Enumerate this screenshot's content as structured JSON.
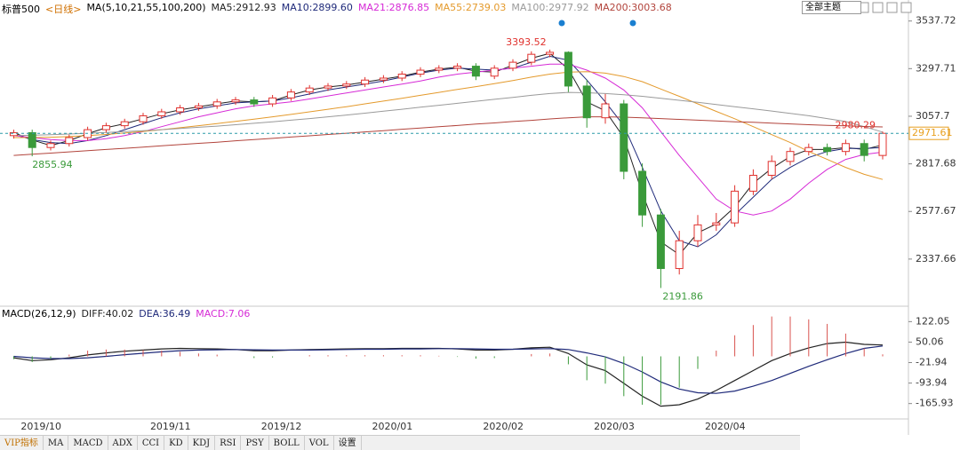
{
  "chart_data": [
    {
      "type": "candlestick",
      "title": "标普500",
      "period": "<日线>",
      "indicator": "MA(5,10,21,55,100,200)",
      "up_color": "#e0312d",
      "down_color": "#3a9a3a",
      "last_color": "#e8a020",
      "categories": [
        null,
        "2019/10",
        null,
        null,
        null,
        null,
        null,
        null,
        "2019/11",
        null,
        null,
        null,
        null,
        null,
        "2019/12",
        null,
        null,
        null,
        null,
        null,
        "2020/01",
        null,
        null,
        null,
        null,
        null,
        "2020/02",
        null,
        null,
        null,
        null,
        null,
        "2020/03",
        null,
        null,
        null,
        null,
        null,
        "2020/04",
        null,
        null,
        null,
        null,
        null,
        null,
        null,
        null,
        null
      ],
      "open": [
        2960,
        2975,
        2900,
        2920,
        2950,
        2990,
        3010,
        3030,
        3060,
        3080,
        3100,
        3110,
        3130,
        3140,
        3120,
        3150,
        3180,
        3200,
        3210,
        3220,
        3240,
        3250,
        3270,
        3290,
        3300,
        3310,
        3260,
        3300,
        3330,
        3370,
        3380,
        3210,
        3050,
        3120,
        2780,
        2560,
        2290,
        2430,
        2510,
        2520,
        2680,
        2760,
        2830,
        2880,
        2900,
        2880,
        2920,
        2860
      ],
      "high": [
        2990,
        2990,
        2935,
        2965,
        3005,
        3025,
        3045,
        3075,
        3095,
        3115,
        3125,
        3145,
        3155,
        3155,
        3165,
        3195,
        3215,
        3225,
        3235,
        3255,
        3265,
        3285,
        3305,
        3315,
        3325,
        3325,
        3315,
        3345,
        3385,
        3393.52,
        3385,
        3240,
        3170,
        3140,
        2820,
        2590,
        2480,
        2560,
        2570,
        2710,
        2790,
        2860,
        2900,
        2920,
        2920,
        2940,
        2940,
        2980.29
      ],
      "low": [
        2945,
        2855.94,
        2885,
        2905,
        2935,
        2975,
        2995,
        3015,
        3045,
        3065,
        3085,
        3095,
        3115,
        3105,
        3105,
        3135,
        3165,
        3185,
        3195,
        3205,
        3225,
        3235,
        3255,
        3275,
        3285,
        3240,
        3245,
        3285,
        3315,
        3355,
        3180,
        3000,
        3020,
        2740,
        2500,
        2191.86,
        2260,
        2400,
        2480,
        2500,
        2660,
        2740,
        2810,
        2860,
        2860,
        2860,
        2830,
        2840
      ],
      "close": [
        2975,
        2900,
        2920,
        2950,
        2990,
        3010,
        3030,
        3060,
        3080,
        3100,
        3110,
        3130,
        3140,
        3120,
        3150,
        3180,
        3200,
        3210,
        3220,
        3240,
        3250,
        3270,
        3290,
        3300,
        3310,
        3260,
        3300,
        3330,
        3370,
        3380,
        3210,
        3050,
        3120,
        2780,
        2560,
        2290,
        2430,
        2510,
        2520,
        2680,
        2760,
        2830,
        2880,
        2900,
        2880,
        2920,
        2860,
        2971.61
      ],
      "series": [
        {
          "name": "MA5:2912.93",
          "color": "#222222",
          "values": [
            2975,
            2938,
            2910,
            2935,
            2970,
            3000,
            3020,
            3045,
            3070,
            3090,
            3105,
            3120,
            3135,
            3130,
            3135,
            3165,
            3190,
            3205,
            3215,
            3230,
            3245,
            3260,
            3280,
            3295,
            3305,
            3285,
            3280,
            3315,
            3350,
            3375,
            3295,
            3130,
            3085,
            2950,
            2670,
            2425,
            2360,
            2470,
            2515,
            2600,
            2720,
            2795,
            2855,
            2890,
            2890,
            2900,
            2890,
            2912.93
          ]
        },
        {
          "name": "MA10:2899.60",
          "color": "#1f2a7a",
          "values": [
            2965,
            2940,
            2925,
            2920,
            2935,
            2960,
            2990,
            3020,
            3050,
            3075,
            3095,
            3110,
            3125,
            3130,
            3135,
            3150,
            3170,
            3190,
            3205,
            3220,
            3235,
            3255,
            3275,
            3290,
            3300,
            3295,
            3290,
            3300,
            3330,
            3360,
            3340,
            3240,
            3130,
            3010,
            2800,
            2580,
            2430,
            2400,
            2460,
            2560,
            2650,
            2740,
            2800,
            2850,
            2880,
            2895,
            2895,
            2899.6
          ]
        },
        {
          "name": "MA21:2876.85",
          "color": "#d62ad6",
          "values": [
            2960,
            2950,
            2940,
            2935,
            2935,
            2945,
            2960,
            2980,
            3005,
            3030,
            3055,
            3075,
            3095,
            3110,
            3120,
            3130,
            3145,
            3160,
            3175,
            3190,
            3205,
            3220,
            3235,
            3255,
            3270,
            3280,
            3290,
            3300,
            3310,
            3320,
            3320,
            3290,
            3250,
            3190,
            3100,
            2980,
            2860,
            2750,
            2640,
            2580,
            2560,
            2580,
            2640,
            2720,
            2790,
            2840,
            2865,
            2876.85
          ]
        },
        {
          "name": "MA55:2739.03",
          "color": "#e49a2c",
          "values": [
            2950,
            2950,
            2952,
            2955,
            2960,
            2966,
            2973,
            2981,
            2990,
            3000,
            3010,
            3021,
            3032,
            3043,
            3055,
            3067,
            3080,
            3093,
            3106,
            3120,
            3134,
            3148,
            3163,
            3178,
            3193,
            3207,
            3222,
            3238,
            3255,
            3270,
            3280,
            3282,
            3275,
            3258,
            3232,
            3195,
            3158,
            3120,
            3082,
            3045,
            3005,
            2965,
            2925,
            2880,
            2840,
            2800,
            2765,
            2739.03
          ]
        },
        {
          "name": "MA100:2977.92",
          "color": "#9a9a9a",
          "values": [
            2960,
            2962,
            2965,
            2968,
            2972,
            2976,
            2980,
            2985,
            2990,
            2996,
            3002,
            3008,
            3015,
            3022,
            3030,
            3038,
            3046,
            3055,
            3064,
            3073,
            3083,
            3093,
            3103,
            3113,
            3123,
            3133,
            3143,
            3153,
            3163,
            3172,
            3178,
            3176,
            3172,
            3166,
            3158,
            3148,
            3138,
            3128,
            3117,
            3106,
            3095,
            3084,
            3072,
            3060,
            3046,
            3031,
            3005,
            2977.92
          ]
        },
        {
          "name": "MA200:3003.68",
          "color": "#b2443c",
          "values": [
            2860,
            2866,
            2872,
            2878,
            2884,
            2890,
            2896,
            2902,
            2909,
            2915,
            2921,
            2927,
            2934,
            2940,
            2946,
            2953,
            2959,
            2966,
            2972,
            2979,
            2985,
            2992,
            2998,
            3005,
            3011,
            3018,
            3024,
            3031,
            3037,
            3044,
            3050,
            3055,
            3055,
            3053,
            3050,
            3046,
            3042,
            3038,
            3034,
            3030,
            3027,
            3023,
            3019,
            3015,
            3012,
            3009,
            3006,
            3003.68
          ]
        }
      ],
      "ylim": [
        2100,
        3590
      ],
      "yticks": [
        3537.72,
        3297.71,
        3057.7,
        2817.68,
        2577.67,
        2337.66
      ]
    },
    {
      "type": "macd",
      "title": "MACD(26,12,9)",
      "series": [
        {
          "name": "DIFF:40.02",
          "color": "#222222",
          "kind": "line",
          "values": [
            -5,
            -15,
            -12,
            -5,
            5,
            12,
            18,
            22,
            26,
            28,
            27,
            26,
            24,
            20,
            20,
            22,
            24,
            25,
            26,
            27,
            27,
            28,
            28,
            28,
            26,
            22,
            22,
            25,
            30,
            32,
            10,
            -30,
            -50,
            -95,
            -140,
            -175,
            -170,
            -150,
            -120,
            -85,
            -50,
            -15,
            10,
            30,
            45,
            50,
            42,
            40.02
          ]
        },
        {
          "name": "DEA:36.49",
          "color": "#1f2a7a",
          "kind": "line",
          "values": [
            0,
            -5,
            -8,
            -8,
            -5,
            0,
            6,
            11,
            16,
            20,
            22,
            23,
            24,
            23,
            22,
            22,
            22,
            23,
            24,
            25,
            25,
            26,
            26,
            27,
            27,
            26,
            25,
            25,
            26,
            27,
            24,
            12,
            -2,
            -25,
            -55,
            -90,
            -115,
            -128,
            -130,
            -122,
            -105,
            -85,
            -60,
            -35,
            -12,
            10,
            28,
            36.49
          ]
        },
        {
          "name": "MACD:7.06",
          "color": "#d62ad6",
          "kind": "bar",
          "up_color": "#d9534f",
          "down_color": "#3a9a3a",
          "values": [
            -10,
            -20,
            -8,
            6,
            20,
            24,
            24,
            22,
            20,
            16,
            10,
            6,
            0,
            -6,
            -4,
            0,
            4,
            4,
            4,
            4,
            4,
            4,
            4,
            2,
            -2,
            -8,
            -6,
            0,
            8,
            10,
            -28,
            -84,
            -96,
            -140,
            -170,
            -170,
            -110,
            -44,
            20,
            74,
            110,
            140,
            140,
            130,
            114,
            80,
            28,
            7.06
          ]
        }
      ],
      "ylim": [
        -220,
        145
      ],
      "yticks": [
        122.05,
        50.06,
        -21.94,
        -93.94,
        -165.93
      ]
    }
  ],
  "toolbar": {
    "theme": "全部主题"
  },
  "tabs": [
    "VIP指标",
    "MA",
    "MACD",
    "ADX",
    "CCI",
    "KD",
    "KDJ",
    "RSI",
    "PSY",
    "BOLL",
    "VOL",
    "设置"
  ]
}
